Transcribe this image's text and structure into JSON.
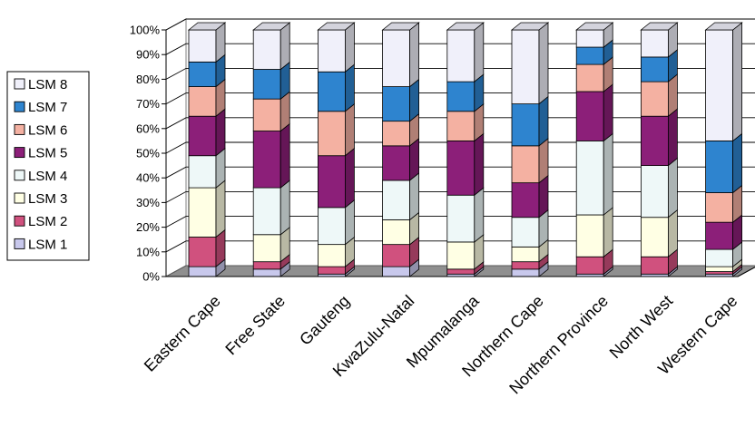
{
  "chart_data": {
    "type": "bar",
    "stacked": true,
    "percent": true,
    "three_d": true,
    "categories": [
      "Eastern Cape",
      "Free State",
      "Gauteng",
      "KwaZulu-Natal",
      "Mpumalanga",
      "Northern Cape",
      "Northern Province",
      "North West",
      "Western Cape"
    ],
    "y_ticks": [
      "0%",
      "10%",
      "20%",
      "30%",
      "40%",
      "50%",
      "60%",
      "70%",
      "80%",
      "90%",
      "100%"
    ],
    "ylim": [
      0,
      100
    ],
    "legend_position": "left",
    "series": [
      {
        "name": "LSM 1",
        "color": "#c8c8ec",
        "values": [
          4,
          3,
          1,
          4,
          1,
          3,
          1,
          1,
          1
        ]
      },
      {
        "name": "LSM 2",
        "color": "#d0517e",
        "values": [
          12,
          3,
          3,
          9,
          2,
          3,
          7,
          7,
          1
        ]
      },
      {
        "name": "LSM 3",
        "color": "#ffffe4",
        "values": [
          20,
          11,
          9,
          10,
          11,
          6,
          17,
          16,
          2
        ]
      },
      {
        "name": "LSM 4",
        "color": "#eef8f8",
        "values": [
          13,
          19,
          15,
          16,
          19,
          12,
          30,
          21,
          7
        ]
      },
      {
        "name": "LSM 5",
        "color": "#8c1f79",
        "values": [
          16,
          23,
          21,
          14,
          22,
          14,
          20,
          20,
          11
        ]
      },
      {
        "name": "LSM 6",
        "color": "#f4b1a2",
        "values": [
          12,
          13,
          18,
          10,
          12,
          15,
          11,
          14,
          12
        ]
      },
      {
        "name": "LSM 7",
        "color": "#2e84cf",
        "values": [
          10,
          12,
          16,
          14,
          12,
          17,
          7,
          10,
          21
        ]
      },
      {
        "name": "LSM 8",
        "color": "#f0f0fa",
        "values": [
          13,
          16,
          17,
          23,
          21,
          30,
          7,
          11,
          45
        ]
      }
    ]
  }
}
